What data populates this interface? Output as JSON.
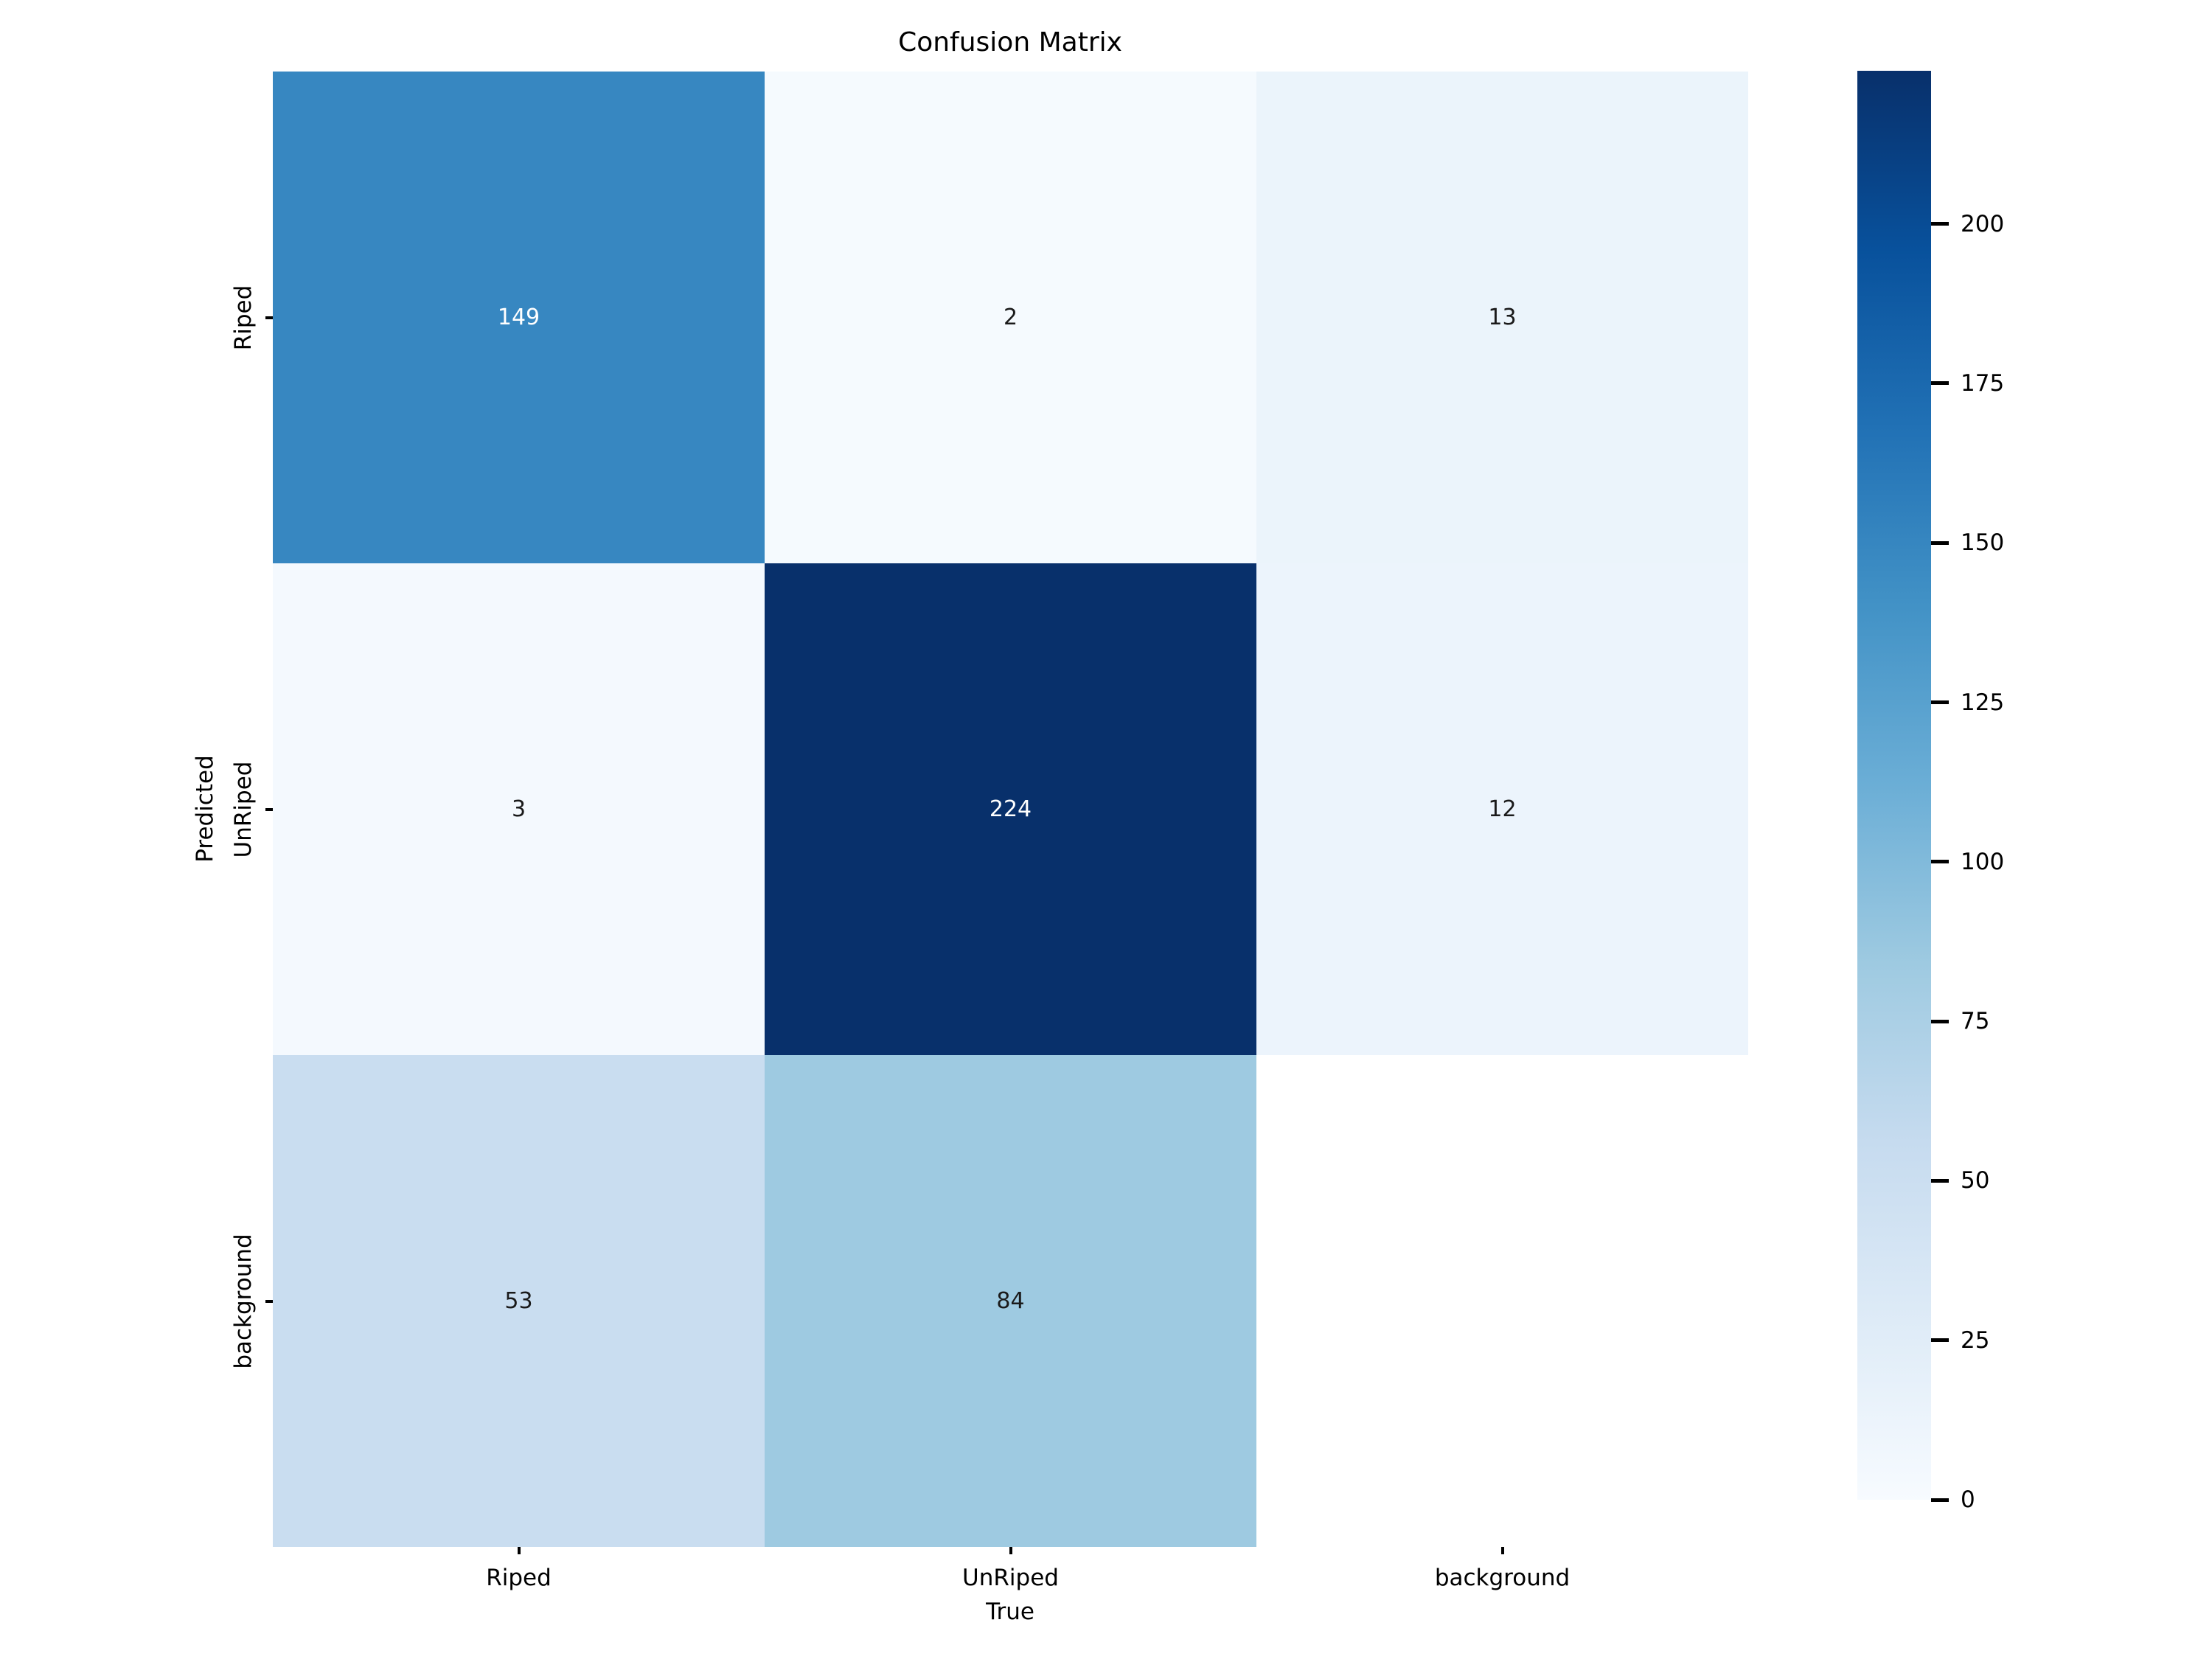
{
  "chart_data": {
    "type": "heatmap",
    "title": "Confusion Matrix",
    "xlabel": "True",
    "ylabel": "Predicted",
    "x_categories": [
      "Riped",
      "UnRiped",
      "background"
    ],
    "y_categories": [
      "Riped",
      "UnRiped",
      "background"
    ],
    "matrix": [
      [
        149,
        2,
        13
      ],
      [
        3,
        224,
        12
      ],
      [
        53,
        84,
        null
      ]
    ],
    "vmin": 0,
    "vmax": 224,
    "colormap_name": "Blues",
    "colormap_stops": [
      [
        0.0,
        "#f7fbff"
      ],
      [
        0.125,
        "#deebf7"
      ],
      [
        0.25,
        "#c6dbef"
      ],
      [
        0.375,
        "#9ecae1"
      ],
      [
        0.5,
        "#6baed6"
      ],
      [
        0.625,
        "#4292c6"
      ],
      [
        0.75,
        "#2171b5"
      ],
      [
        0.875,
        "#08519c"
      ],
      [
        1.0,
        "#08306b"
      ]
    ],
    "empty_cell_color": "#ffffff",
    "annotation_color_dark": "#1a1a1a",
    "annotation_color_light": "#ffffff",
    "colorbar_ticks": [
      0,
      25,
      50,
      75,
      100,
      125,
      150,
      175,
      200
    ],
    "legend_position": "right-colorbar",
    "grid": false
  }
}
